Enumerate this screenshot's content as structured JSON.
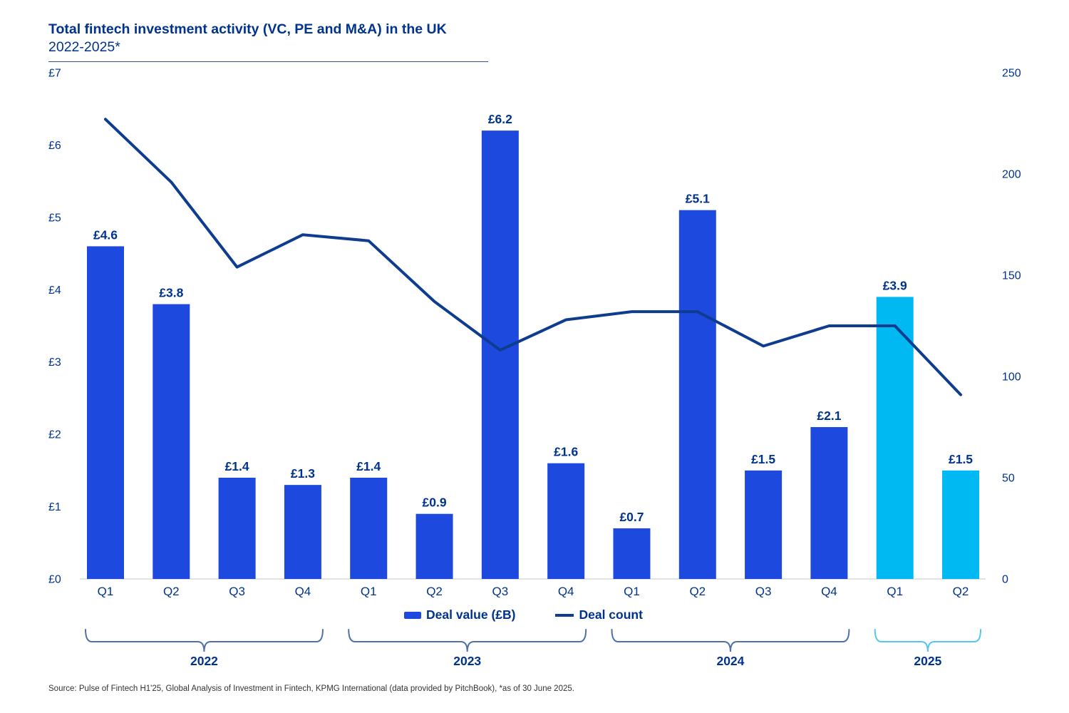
{
  "title": {
    "line1": "Total fintech investment activity (VC, PE and M&A) in the UK",
    "line2": "2022-2025*"
  },
  "legend": {
    "deal_value": "Deal value (£B)",
    "deal_count": "Deal count"
  },
  "source": "Source: Pulse of Fintech H1'25, Global Analysis of Investment in Fintech, KPMG International (data provided by PitchBook), *as of 30 June 2025.",
  "colors": {
    "navy_text": "#00338D",
    "bar_dark": "#1E49DE",
    "bar_highlight": "#00B9F2",
    "line": "#0E3C8E",
    "bracket_dark": "#4F71A8",
    "bracket_highlight": "#55C7EF",
    "baseline": "#D8D8D8",
    "source_text": "#333333"
  },
  "chart_data": {
    "type": "bar+line combo",
    "title": "Total fintech investment activity (VC, PE and M&A) in the UK 2022-2025*",
    "categories": [
      "Q1",
      "Q2",
      "Q3",
      "Q4",
      "Q1",
      "Q2",
      "Q3",
      "Q4",
      "Q1",
      "Q2",
      "Q3",
      "Q4",
      "Q1",
      "Q2"
    ],
    "year_groups": [
      {
        "label": "2022",
        "start": 0,
        "end": 3,
        "highlight": false
      },
      {
        "label": "2023",
        "start": 4,
        "end": 7,
        "highlight": false
      },
      {
        "label": "2024",
        "start": 8,
        "end": 11,
        "highlight": false
      },
      {
        "label": "2025",
        "start": 12,
        "end": 13,
        "highlight": true
      }
    ],
    "series": [
      {
        "name": "Deal value (£B)",
        "type": "bar",
        "values": [
          4.6,
          3.8,
          1.4,
          1.3,
          1.4,
          0.9,
          6.2,
          1.6,
          0.7,
          5.1,
          1.5,
          2.1,
          3.9,
          1.5
        ],
        "labels": [
          "£4.6",
          "£3.8",
          "£1.4",
          "£1.3",
          "£1.4",
          "£0.9",
          "£6.2",
          "£1.6",
          "£0.7",
          "£5.1",
          "£1.5",
          "£2.1",
          "£3.9",
          "£1.5"
        ],
        "highlight_from_index": 12
      },
      {
        "name": "Deal count",
        "type": "line",
        "values": [
          227,
          196,
          154,
          170,
          167,
          137,
          113,
          128,
          132,
          132,
          115,
          125,
          125,
          91
        ]
      }
    ],
    "left_axis": {
      "label": "Deal value (£B)",
      "min": 0,
      "max": 7,
      "ticks": [
        "£7",
        "£6",
        "£5",
        "£4",
        "£3",
        "£2",
        "£1",
        "£0"
      ]
    },
    "right_axis": {
      "label": "Deal count",
      "min": 0,
      "max": 250,
      "ticks": [
        "250",
        "200",
        "150",
        "100",
        "50",
        "0"
      ]
    },
    "grid": false,
    "legend_position": "bottom-center"
  }
}
